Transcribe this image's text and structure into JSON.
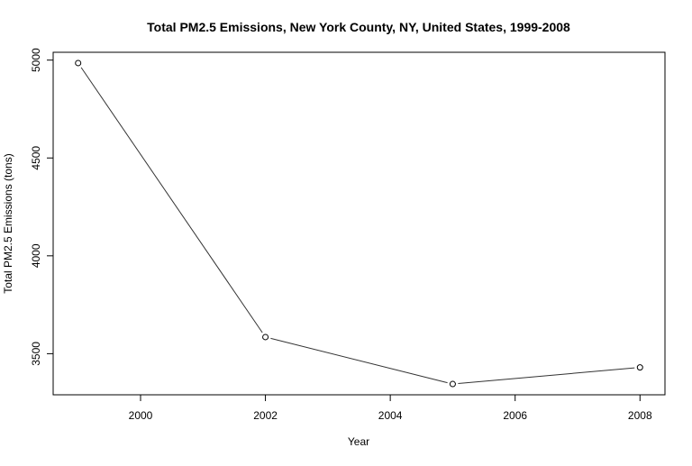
{
  "chart_data": {
    "type": "line",
    "title": "Total PM2.5 Emissions, New York County, NY, United States, 1999-2008",
    "xlabel": "Year",
    "ylabel": "Total PM2.5 Emissions (tons)",
    "x": [
      1999,
      2002,
      2005,
      2008
    ],
    "series": [
      {
        "values": [
          4985,
          3585,
          3345,
          3430
        ]
      }
    ],
    "xlim": [
      1998.6,
      2008.4
    ],
    "ylim": [
      3290,
      5040
    ],
    "xticks": [
      2000,
      2002,
      2004,
      2006,
      2008
    ],
    "yticks": [
      3500,
      4000,
      4500,
      5000
    ],
    "grid": false,
    "legend": "none",
    "line_color": "#333333",
    "marker": "open-circle"
  }
}
